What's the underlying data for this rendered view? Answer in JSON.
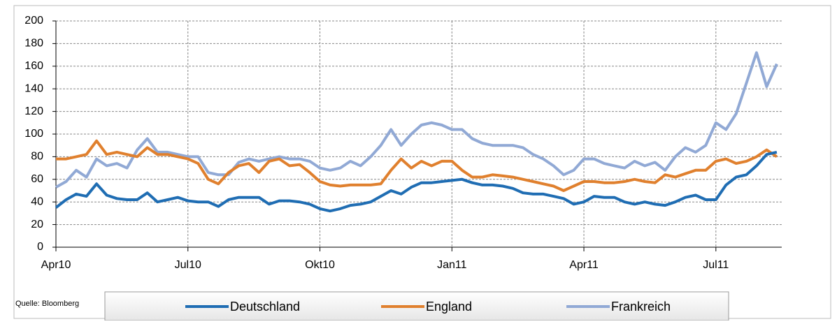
{
  "chart_data": {
    "type": "line",
    "source": "Quelle: Bloomberg",
    "categories": [
      "Apr10",
      null,
      null,
      null,
      null,
      null,
      null,
      null,
      null,
      null,
      null,
      null,
      null,
      "Jul10",
      null,
      null,
      null,
      null,
      null,
      null,
      null,
      null,
      null,
      null,
      null,
      null,
      "Okt10",
      null,
      null,
      null,
      null,
      null,
      null,
      null,
      null,
      null,
      null,
      null,
      null,
      "Jan11",
      null,
      null,
      null,
      null,
      null,
      null,
      null,
      null,
      null,
      null,
      null,
      null,
      "Apr11",
      null,
      null,
      null,
      null,
      null,
      null,
      null,
      null,
      null,
      null,
      null,
      null,
      "Jul11",
      null,
      null,
      null,
      null,
      null,
      null
    ],
    "series": [
      {
        "name": "Deutschland",
        "color": "#1f6db3",
        "values": [
          35,
          42,
          47,
          45,
          56,
          46,
          43,
          42,
          42,
          48,
          40,
          42,
          44,
          41,
          40,
          40,
          36,
          42,
          44,
          44,
          44,
          38,
          41,
          41,
          40,
          38,
          34,
          32,
          34,
          37,
          38,
          40,
          45,
          50,
          47,
          53,
          57,
          57,
          58,
          59,
          60,
          57,
          55,
          55,
          54,
          52,
          48,
          47,
          47,
          45,
          43,
          38,
          40,
          45,
          44,
          44,
          40,
          38,
          40,
          38,
          37,
          40,
          44,
          46,
          42,
          42,
          55,
          62,
          64,
          72,
          82,
          84
        ]
      },
      {
        "name": "England",
        "color": "#e0802e",
        "values": [
          78,
          78,
          80,
          82,
          94,
          82,
          84,
          82,
          80,
          88,
          82,
          82,
          80,
          78,
          74,
          60,
          56,
          66,
          72,
          74,
          66,
          76,
          78,
          72,
          73,
          66,
          58,
          55,
          54,
          55,
          55,
          55,
          56,
          68,
          78,
          70,
          76,
          72,
          76,
          76,
          68,
          62,
          62,
          64,
          63,
          62,
          60,
          58,
          56,
          54,
          50,
          54,
          58,
          58,
          57,
          57,
          58,
          60,
          58,
          57,
          64,
          62,
          65,
          68,
          68,
          76,
          78,
          74,
          76,
          80,
          86,
          80
        ]
      },
      {
        "name": "Frankreich",
        "color": "#91a9d5",
        "values": [
          53,
          58,
          68,
          62,
          78,
          72,
          74,
          70,
          86,
          96,
          84,
          84,
          82,
          80,
          80,
          66,
          64,
          64,
          75,
          78,
          76,
          78,
          80,
          78,
          78,
          76,
          70,
          68,
          70,
          76,
          72,
          80,
          90,
          104,
          90,
          100,
          108,
          110,
          108,
          104,
          104,
          96,
          92,
          90,
          90,
          90,
          88,
          82,
          78,
          72,
          64,
          68,
          78,
          78,
          74,
          72,
          70,
          76,
          72,
          75,
          68,
          80,
          88,
          84,
          90,
          110,
          104,
          118,
          145,
          172,
          142,
          162
        ]
      }
    ],
    "ylim": [
      0,
      200
    ],
    "yticks": [
      0,
      20,
      40,
      60,
      80,
      100,
      120,
      140,
      160,
      180,
      200
    ],
    "grid": true
  }
}
